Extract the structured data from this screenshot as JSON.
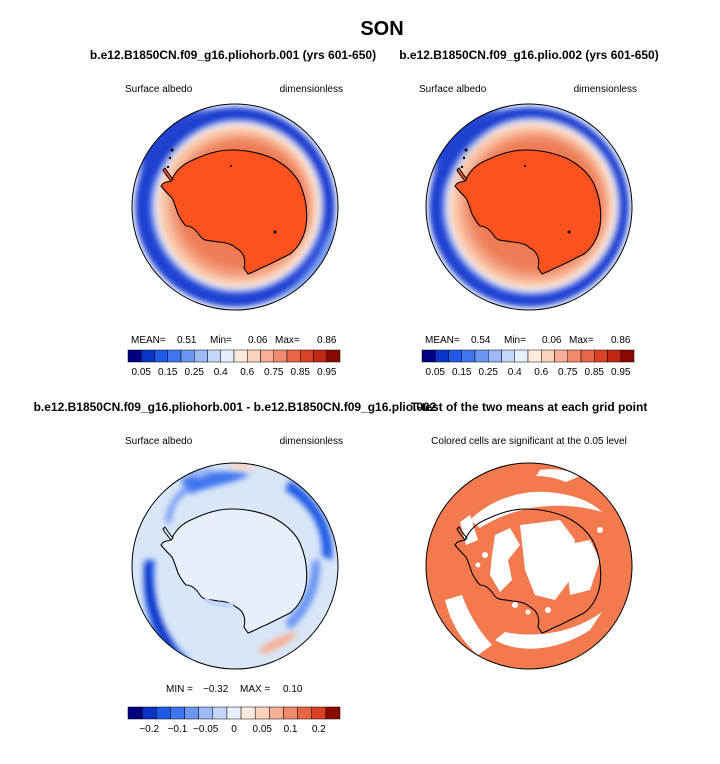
{
  "figure_title": "SON",
  "chart_data": [
    {
      "type": "map",
      "projection": "polar-stereographic-south",
      "title": "b.e12.B1850CN.f09_g16.pliohorb.001 (yrs 601-650)",
      "left_label": "Surface albedo",
      "right_label": "dimensionless",
      "stats": {
        "mean_label": "MEAN=",
        "mean": "0.51",
        "min_label": "Min=",
        "min": "0.06",
        "max_label": "Max=",
        "max": "0.86"
      },
      "colorbar": {
        "tick_labels": [
          "0.05",
          "0.15",
          "0.25",
          "0.4",
          "0.6",
          "0.75",
          "0.85",
          "0.95"
        ],
        "colors": [
          "#000080",
          "#0a33c7",
          "#1e5ae6",
          "#3f76ef",
          "#6b97f3",
          "#9bbaf7",
          "#c4d7fa",
          "#e6effb",
          "#fcebdd",
          "#fbd2bb",
          "#f7b097",
          "#f28a6c",
          "#ea6545",
          "#db4125",
          "#c22914",
          "#8a0a00"
        ]
      }
    },
    {
      "type": "map",
      "projection": "polar-stereographic-south",
      "title": "b.e12.B1850CN.f09_g16.plio.002 (yrs 601-650)",
      "left_label": "Surface albedo",
      "right_label": "dimensionless",
      "stats": {
        "mean_label": "MEAN=",
        "mean": "0.54",
        "min_label": "Min=",
        "min": "0.06",
        "max_label": "Max=",
        "max": "0.86"
      },
      "colorbar": {
        "tick_labels": [
          "0.05",
          "0.15",
          "0.25",
          "0.4",
          "0.6",
          "0.75",
          "0.85",
          "0.95"
        ],
        "colors": [
          "#000080",
          "#0a33c7",
          "#1e5ae6",
          "#3f76ef",
          "#6b97f3",
          "#9bbaf7",
          "#c4d7fa",
          "#e6effb",
          "#fcebdd",
          "#fbd2bb",
          "#f7b097",
          "#f28a6c",
          "#ea6545",
          "#db4125",
          "#c22914",
          "#8a0a00"
        ]
      }
    },
    {
      "type": "map",
      "projection": "polar-stereographic-south",
      "title": "b.e12.B1850CN.f09_g16.pliohorb.001 - b.e12.B1850CN.f09_g16.plio.002",
      "left_label": "Surface albedo",
      "right_label": "dimensionless",
      "stats": {
        "min_label": "MIN =",
        "min": "−0.32",
        "max_label": "MAX =",
        "max": "0.10"
      },
      "colorbar": {
        "tick_labels": [
          "−0.2",
          "−0.1",
          "−0.05",
          "0",
          "0.05",
          "0.1",
          "0.2"
        ],
        "colors": [
          "#000080",
          "#0a33c7",
          "#1e5ae6",
          "#3f76ef",
          "#6b97f3",
          "#9bbaf7",
          "#c4d7fa",
          "#e6effb",
          "#fcebdd",
          "#fbd2bb",
          "#f7b097",
          "#f28a6c",
          "#ea6545",
          "#db4125",
          "#8a0a00"
        ]
      }
    },
    {
      "type": "map",
      "projection": "polar-stereographic-south",
      "title": "T-test of the two means at each grid point",
      "subtitle": "Colored cells are significant at the 0.05 level",
      "significant_color": "#f37a4e"
    }
  ],
  "colors": {
    "ice_orange": "#fc5220",
    "sea_ice_light": "#f9c4a6",
    "ocean_blue": "#2349d8",
    "diff_background": "#d8e6f8",
    "ttest_orange": "#f37a4e"
  }
}
